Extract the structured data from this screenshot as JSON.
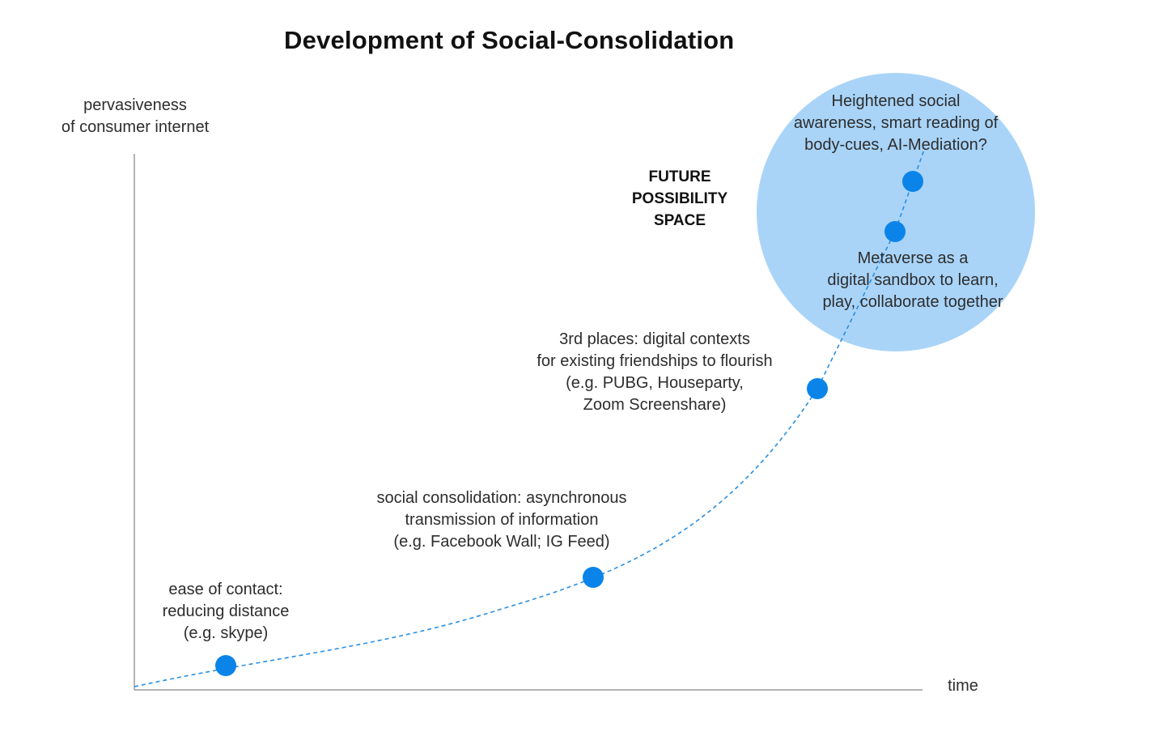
{
  "title": "Development of Social-Consolidation",
  "y_axis_label": [
    "pervasiveness",
    "of consumer internet"
  ],
  "x_axis_label": "time",
  "future_space_label": [
    "FUTURE",
    "POSSIBILITY",
    "SPACE"
  ],
  "milestones": [
    {
      "id": "ease-of-contact",
      "lines": [
        "ease of contact:",
        "reducing distance",
        "(e.g. skype)"
      ]
    },
    {
      "id": "social-consolidation",
      "lines": [
        "social consolidation:  asynchronous",
        "transmission of information",
        "(e.g. Facebook Wall; IG Feed)"
      ]
    },
    {
      "id": "third-places",
      "lines": [
        "3rd places: digital contexts",
        "for existing friendships to flourish",
        "(e.g. PUBG, Houseparty,",
        "Zoom Screenshare)"
      ]
    },
    {
      "id": "metaverse",
      "lines": [
        "Metaverse as a",
        "digital sandbox to learn,",
        "play, collaborate together"
      ]
    },
    {
      "id": "heightened-awareness",
      "lines": [
        "Heightened social",
        "awareness, smart reading of",
        "body-cues, AI-Mediation?"
      ]
    }
  ],
  "colors": {
    "node": "#0a84e8",
    "curve": "#2a8fe0",
    "future_circle": "#a9d4f8",
    "axis": "#9a9a9a"
  }
}
